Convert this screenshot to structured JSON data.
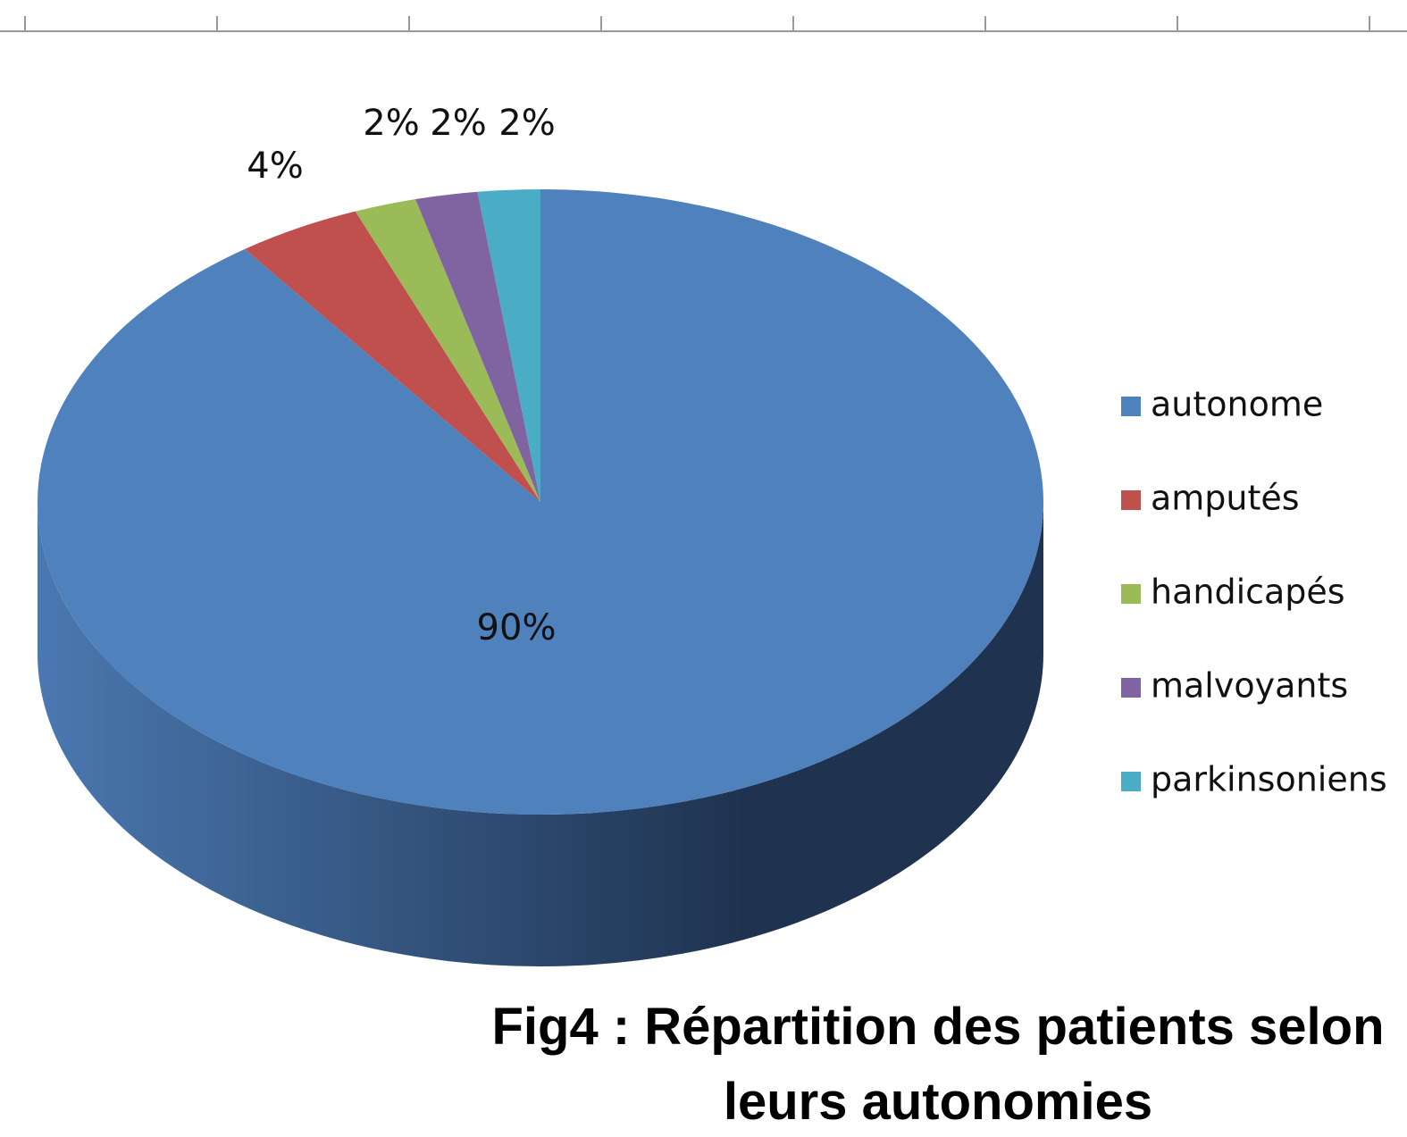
{
  "chart_data": {
    "type": "pie",
    "title": "Fig4 : Répartition des patients selon leurs autonomies",
    "categories": [
      "autonome",
      "amputés",
      "handicapés",
      "malvoyants",
      "parkinsoniens"
    ],
    "values": [
      90,
      4,
      2,
      2,
      2
    ],
    "value_labels": [
      "90%",
      "4%",
      "2%",
      "2%",
      "2%"
    ],
    "colors": [
      "#4f81bd",
      "#c0504d",
      "#9bbb59",
      "#8064a2",
      "#4bacc6"
    ],
    "legend": "right"
  }
}
